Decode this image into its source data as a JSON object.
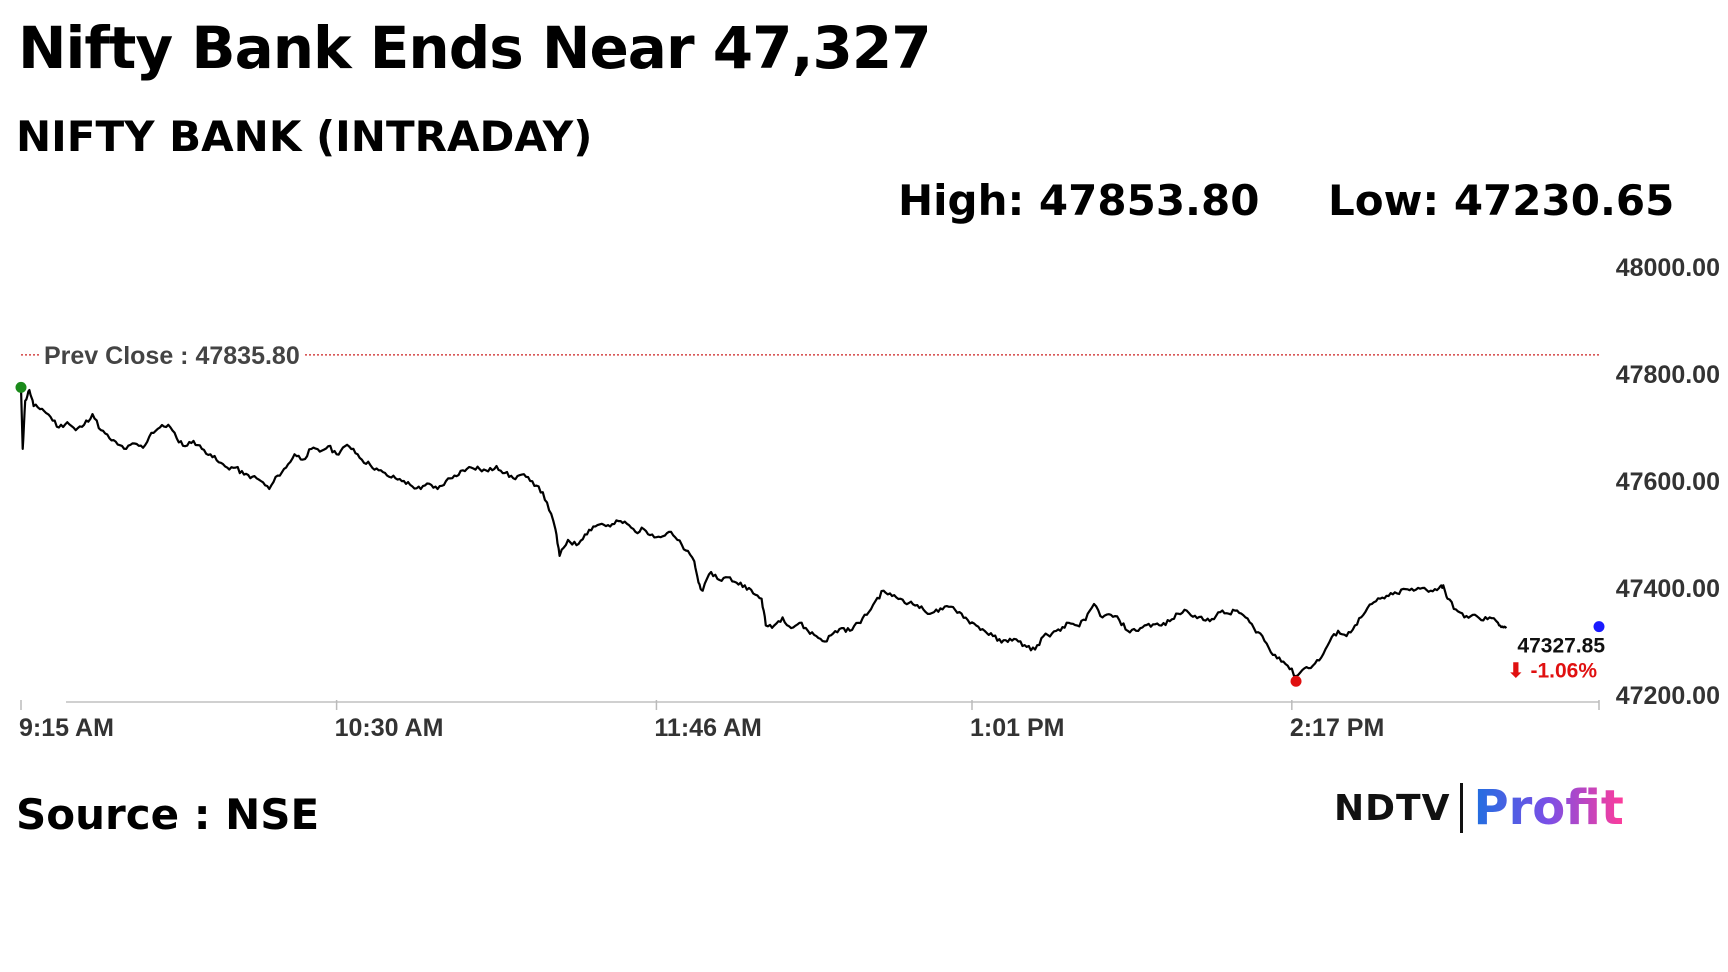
{
  "header": {
    "headline": "Nifty Bank Ends Near 47,327",
    "subtitle": "NIFTY BANK (INTRADAY)",
    "high_label": "High: 47853.80",
    "low_label": "Low: 47230.65"
  },
  "footer": {
    "source": "Source : NSE",
    "logo_ndtv": "NDTV",
    "logo_profit": "Profit"
  },
  "colors": {
    "line": "#000000",
    "prev_close_line": "#cc2222",
    "start_marker": "#1a8a1a",
    "low_marker": "#e01010",
    "end_marker": "#1a1aff",
    "change_text": "#e01010",
    "tick_text": "#333333"
  },
  "chart_data": {
    "type": "line",
    "title": "NIFTY BANK (INTRADAY)",
    "xlabel": "",
    "ylabel": "",
    "ylim": [
      47200,
      48000
    ],
    "y_ticks": [
      {
        "value": 48000,
        "label": "48000.00"
      },
      {
        "value": 47800,
        "label": "47800.00"
      },
      {
        "value": 47600,
        "label": "47600.00"
      },
      {
        "value": 47400,
        "label": "47400.00"
      },
      {
        "value": 47200,
        "label": "47200.00"
      }
    ],
    "x_ticks": [
      {
        "minute": 0,
        "label": "9:15 AM"
      },
      {
        "minute": 75,
        "label": "10:30 AM"
      },
      {
        "minute": 151,
        "label": "11:46 AM"
      },
      {
        "minute": 226,
        "label": "1:01 PM"
      },
      {
        "minute": 302,
        "label": "2:17 PM"
      }
    ],
    "x_range_minutes": [
      0,
      375
    ],
    "prev_close": {
      "value": 47835.8,
      "label": "Prev Close : 47835.80"
    },
    "last": {
      "value": 47327.85,
      "label": "47327.85",
      "change_label": "⬇ -1.06%"
    },
    "grid": false,
    "series": [
      {
        "points": [
          [
            0,
            47775
          ],
          [
            0.4,
            47660
          ],
          [
            1,
            47750
          ],
          [
            2,
            47770
          ],
          [
            3,
            47740
          ],
          [
            5,
            47735
          ],
          [
            7,
            47720
          ],
          [
            9,
            47700
          ],
          [
            11,
            47710
          ],
          [
            13,
            47695
          ],
          [
            15,
            47705
          ],
          [
            17,
            47725
          ],
          [
            19,
            47695
          ],
          [
            21,
            47680
          ],
          [
            23,
            47668
          ],
          [
            25,
            47660
          ],
          [
            27,
            47670
          ],
          [
            29,
            47662
          ],
          [
            31,
            47690
          ],
          [
            33,
            47700
          ],
          [
            35,
            47705
          ],
          [
            37,
            47680
          ],
          [
            39,
            47665
          ],
          [
            41,
            47675
          ],
          [
            43,
            47660
          ],
          [
            45,
            47650
          ],
          [
            47,
            47635
          ],
          [
            49,
            47625
          ],
          [
            51,
            47625
          ],
          [
            53,
            47612
          ],
          [
            55,
            47608
          ],
          [
            57,
            47600
          ],
          [
            59,
            47585
          ],
          [
            61,
            47610
          ],
          [
            63,
            47625
          ],
          [
            65,
            47650
          ],
          [
            67,
            47640
          ],
          [
            69,
            47660
          ],
          [
            71,
            47655
          ],
          [
            73,
            47665
          ],
          [
            75,
            47650
          ],
          [
            77,
            47665
          ],
          [
            79,
            47660
          ],
          [
            81,
            47640
          ],
          [
            83,
            47630
          ],
          [
            85,
            47620
          ],
          [
            87,
            47610
          ],
          [
            89,
            47605
          ],
          [
            91,
            47600
          ],
          [
            93,
            47590
          ],
          [
            95,
            47585
          ],
          [
            97,
            47595
          ],
          [
            99,
            47585
          ],
          [
            101,
            47600
          ],
          [
            103,
            47610
          ],
          [
            105,
            47620
          ],
          [
            107,
            47625
          ],
          [
            109,
            47622
          ],
          [
            111,
            47618
          ],
          [
            113,
            47628
          ],
          [
            115,
            47615
          ],
          [
            117,
            47605
          ],
          [
            119,
            47612
          ],
          [
            121,
            47600
          ],
          [
            123,
            47590
          ],
          [
            125,
            47560
          ],
          [
            127,
            47510
          ],
          [
            128,
            47460
          ],
          [
            130,
            47490
          ],
          [
            132,
            47480
          ],
          [
            134,
            47500
          ],
          [
            136,
            47515
          ],
          [
            138,
            47520
          ],
          [
            140,
            47515
          ],
          [
            142,
            47525
          ],
          [
            144,
            47520
          ],
          [
            146,
            47505
          ],
          [
            148,
            47510
          ],
          [
            150,
            47500
          ],
          [
            152,
            47495
          ],
          [
            154,
            47505
          ],
          [
            156,
            47490
          ],
          [
            158,
            47470
          ],
          [
            160,
            47450
          ],
          [
            161,
            47410
          ],
          [
            162,
            47395
          ],
          [
            164,
            47430
          ],
          [
            166,
            47415
          ],
          [
            168,
            47420
          ],
          [
            170,
            47410
          ],
          [
            172,
            47405
          ],
          [
            174,
            47390
          ],
          [
            176,
            47380
          ],
          [
            177,
            47330
          ],
          [
            179,
            47330
          ],
          [
            181,
            47345
          ],
          [
            183,
            47325
          ],
          [
            185,
            47335
          ],
          [
            187,
            47320
          ],
          [
            189,
            47310
          ],
          [
            191,
            47300
          ],
          [
            193,
            47315
          ],
          [
            195,
            47325
          ],
          [
            197,
            47320
          ],
          [
            199,
            47335
          ],
          [
            201,
            47350
          ],
          [
            203,
            47375
          ],
          [
            205,
            47395
          ],
          [
            207,
            47385
          ],
          [
            209,
            47380
          ],
          [
            211,
            47372
          ],
          [
            213,
            47368
          ],
          [
            215,
            47355
          ],
          [
            217,
            47355
          ],
          [
            219,
            47360
          ],
          [
            221,
            47365
          ],
          [
            223,
            47355
          ],
          [
            225,
            47340
          ],
          [
            227,
            47330
          ],
          [
            229,
            47320
          ],
          [
            231,
            47310
          ],
          [
            233,
            47298
          ],
          [
            235,
            47305
          ],
          [
            237,
            47300
          ],
          [
            239,
            47290
          ],
          [
            241,
            47285
          ],
          [
            243,
            47310
          ],
          [
            245,
            47315
          ],
          [
            247,
            47320
          ],
          [
            249,
            47335
          ],
          [
            251,
            47330
          ],
          [
            253,
            47340
          ],
          [
            255,
            47370
          ],
          [
            257,
            47345
          ],
          [
            259,
            47350
          ],
          [
            261,
            47340
          ],
          [
            263,
            47320
          ],
          [
            265,
            47320
          ],
          [
            267,
            47330
          ],
          [
            269,
            47332
          ],
          [
            271,
            47330
          ],
          [
            273,
            47338
          ],
          [
            275,
            47352
          ],
          [
            277,
            47358
          ],
          [
            279,
            47348
          ],
          [
            281,
            47340
          ],
          [
            283,
            47342
          ],
          [
            285,
            47355
          ],
          [
            287,
            47352
          ],
          [
            289,
            47358
          ],
          [
            291,
            47345
          ],
          [
            293,
            47325
          ],
          [
            295,
            47310
          ],
          [
            297,
            47280
          ],
          [
            299,
            47270
          ],
          [
            301,
            47255
          ],
          [
            303,
            47235
          ],
          [
            305,
            47250
          ],
          [
            307,
            47255
          ],
          [
            309,
            47270
          ],
          [
            311,
            47300
          ],
          [
            313,
            47320
          ],
          [
            315,
            47310
          ],
          [
            317,
            47330
          ],
          [
            319,
            47350
          ],
          [
            321,
            47370
          ],
          [
            323,
            47380
          ],
          [
            325,
            47385
          ],
          [
            327,
            47390
          ],
          [
            329,
            47398
          ],
          [
            331,
            47395
          ],
          [
            333,
            47400
          ],
          [
            335,
            47395
          ],
          [
            337,
            47400
          ],
          [
            338,
            47405
          ],
          [
            339,
            47380
          ],
          [
            341,
            47360
          ],
          [
            343,
            47345
          ],
          [
            345,
            47350
          ],
          [
            347,
            47340
          ],
          [
            349,
            47345
          ],
          [
            351,
            47335
          ],
          [
            352,
            47328
          ],
          [
            353,
            47327.85
          ]
        ]
      }
    ]
  }
}
